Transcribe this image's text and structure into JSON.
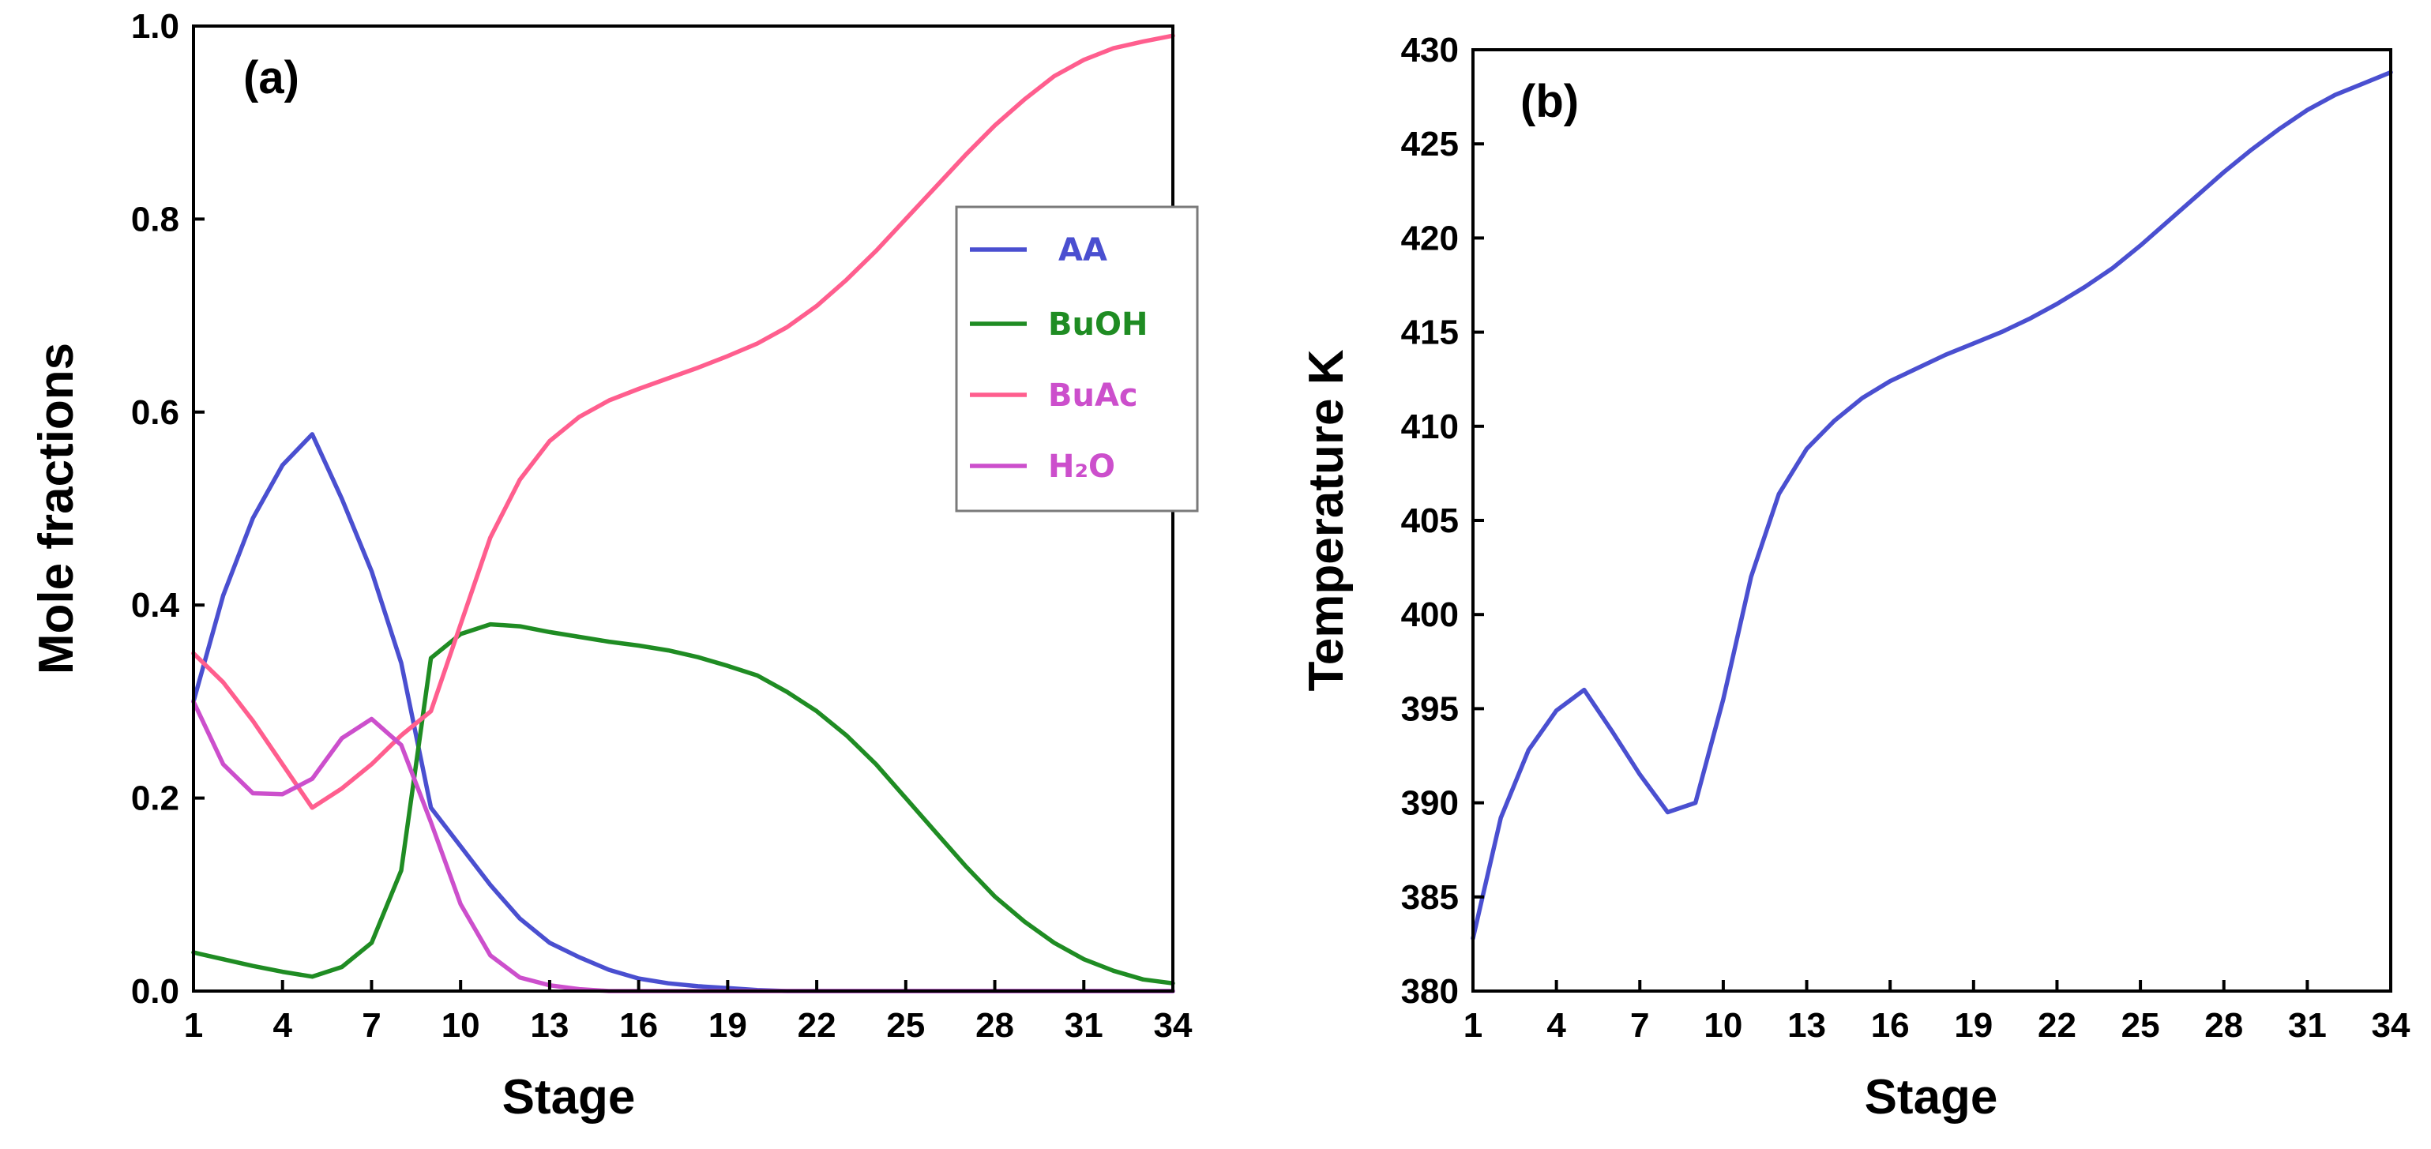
{
  "chart_data": [
    {
      "type": "line",
      "panel_label": "(a)",
      "xlabel": "Stage",
      "ylabel": "Mole fractions",
      "xlim": [
        1,
        34
      ],
      "ylim": [
        0,
        1.0
      ],
      "xticks": [
        "1",
        "4",
        "7",
        "10",
        "13",
        "16",
        "19",
        "22",
        "25",
        "28",
        "31",
        "34"
      ],
      "yticks": [
        "0.0",
        "0.2",
        "0.4",
        "0.6",
        "0.8",
        "1.0"
      ],
      "legend_position": "upper-right",
      "x": [
        1,
        2,
        3,
        4,
        5,
        6,
        7,
        8,
        9,
        10,
        11,
        12,
        13,
        14,
        15,
        16,
        17,
        18,
        19,
        20,
        21,
        22,
        23,
        24,
        25,
        26,
        27,
        28,
        29,
        30,
        31,
        32,
        33,
        34
      ],
      "series": [
        {
          "name": "AA",
          "color": "#4a4fd0",
          "values": [
            0.3,
            0.41,
            0.49,
            0.545,
            0.577,
            0.51,
            0.435,
            0.34,
            0.19,
            0.15,
            0.11,
            0.075,
            0.05,
            0.035,
            0.022,
            0.013,
            0.008,
            0.005,
            0.003,
            0.001,
            0.0,
            0.0,
            0.0,
            0.0,
            0.0,
            0.0,
            0.0,
            0.0,
            0.0,
            0.0,
            0.0,
            0.0,
            0.0,
            0.0
          ]
        },
        {
          "name": "BuOH",
          "color": "#1f8c23",
          "values": [
            0.04,
            0.033,
            0.026,
            0.02,
            0.015,
            0.025,
            0.05,
            0.125,
            0.345,
            0.37,
            0.38,
            0.378,
            0.372,
            0.367,
            0.362,
            0.358,
            0.353,
            0.346,
            0.337,
            0.327,
            0.31,
            0.29,
            0.265,
            0.235,
            0.2,
            0.165,
            0.13,
            0.098,
            0.072,
            0.05,
            0.033,
            0.021,
            0.012,
            0.008
          ]
        },
        {
          "name": "BuAc",
          "color": "#ff5e8e",
          "values": [
            0.35,
            0.32,
            0.28,
            0.235,
            0.19,
            0.21,
            0.235,
            0.265,
            0.29,
            0.38,
            0.47,
            0.53,
            0.57,
            0.595,
            0.612,
            0.624,
            0.635,
            0.646,
            0.658,
            0.671,
            0.688,
            0.71,
            0.737,
            0.767,
            0.8,
            0.833,
            0.866,
            0.897,
            0.924,
            0.948,
            0.965,
            0.977,
            0.984,
            0.99
          ]
        },
        {
          "name": "H₂O",
          "color": "#cc4fcc",
          "values": [
            0.3,
            0.235,
            0.205,
            0.204,
            0.22,
            0.262,
            0.282,
            0.255,
            0.175,
            0.09,
            0.037,
            0.014,
            0.006,
            0.002,
            0.0,
            0.0,
            0.0,
            0.0,
            0.0,
            0.0,
            0.0,
            0.0,
            0.0,
            0.0,
            0.0,
            0.0,
            0.0,
            0.0,
            0.0,
            0.0,
            0.0,
            0.0,
            0.0,
            0.0
          ]
        }
      ]
    },
    {
      "type": "line",
      "panel_label": "(b)",
      "xlabel": "Stage",
      "ylabel": "Temperature K",
      "xlim": [
        1,
        34
      ],
      "ylim": [
        380,
        430
      ],
      "xticks": [
        "1",
        "4",
        "7",
        "10",
        "13",
        "16",
        "19",
        "22",
        "25",
        "28",
        "31",
        "34"
      ],
      "yticks": [
        "380",
        "385",
        "390",
        "395",
        "400",
        "405",
        "410",
        "415",
        "420",
        "425",
        "430"
      ],
      "x": [
        1,
        2,
        3,
        4,
        5,
        6,
        7,
        8,
        9,
        10,
        11,
        12,
        13,
        14,
        15,
        16,
        17,
        18,
        19,
        20,
        21,
        22,
        23,
        24,
        25,
        26,
        27,
        28,
        29,
        30,
        31,
        32,
        33,
        34
      ],
      "series": [
        {
          "name": "Temperature",
          "color": "#4a4fd0",
          "values": [
            382.8,
            389.2,
            392.8,
            394.9,
            396.0,
            393.8,
            391.5,
            389.5,
            390.0,
            395.5,
            402.0,
            406.4,
            408.8,
            410.3,
            411.5,
            412.4,
            413.1,
            413.8,
            414.4,
            415.0,
            415.7,
            416.5,
            417.4,
            418.4,
            419.6,
            420.9,
            422.2,
            423.5,
            424.7,
            425.8,
            426.8,
            427.6,
            428.2,
            428.8
          ]
        }
      ]
    }
  ]
}
